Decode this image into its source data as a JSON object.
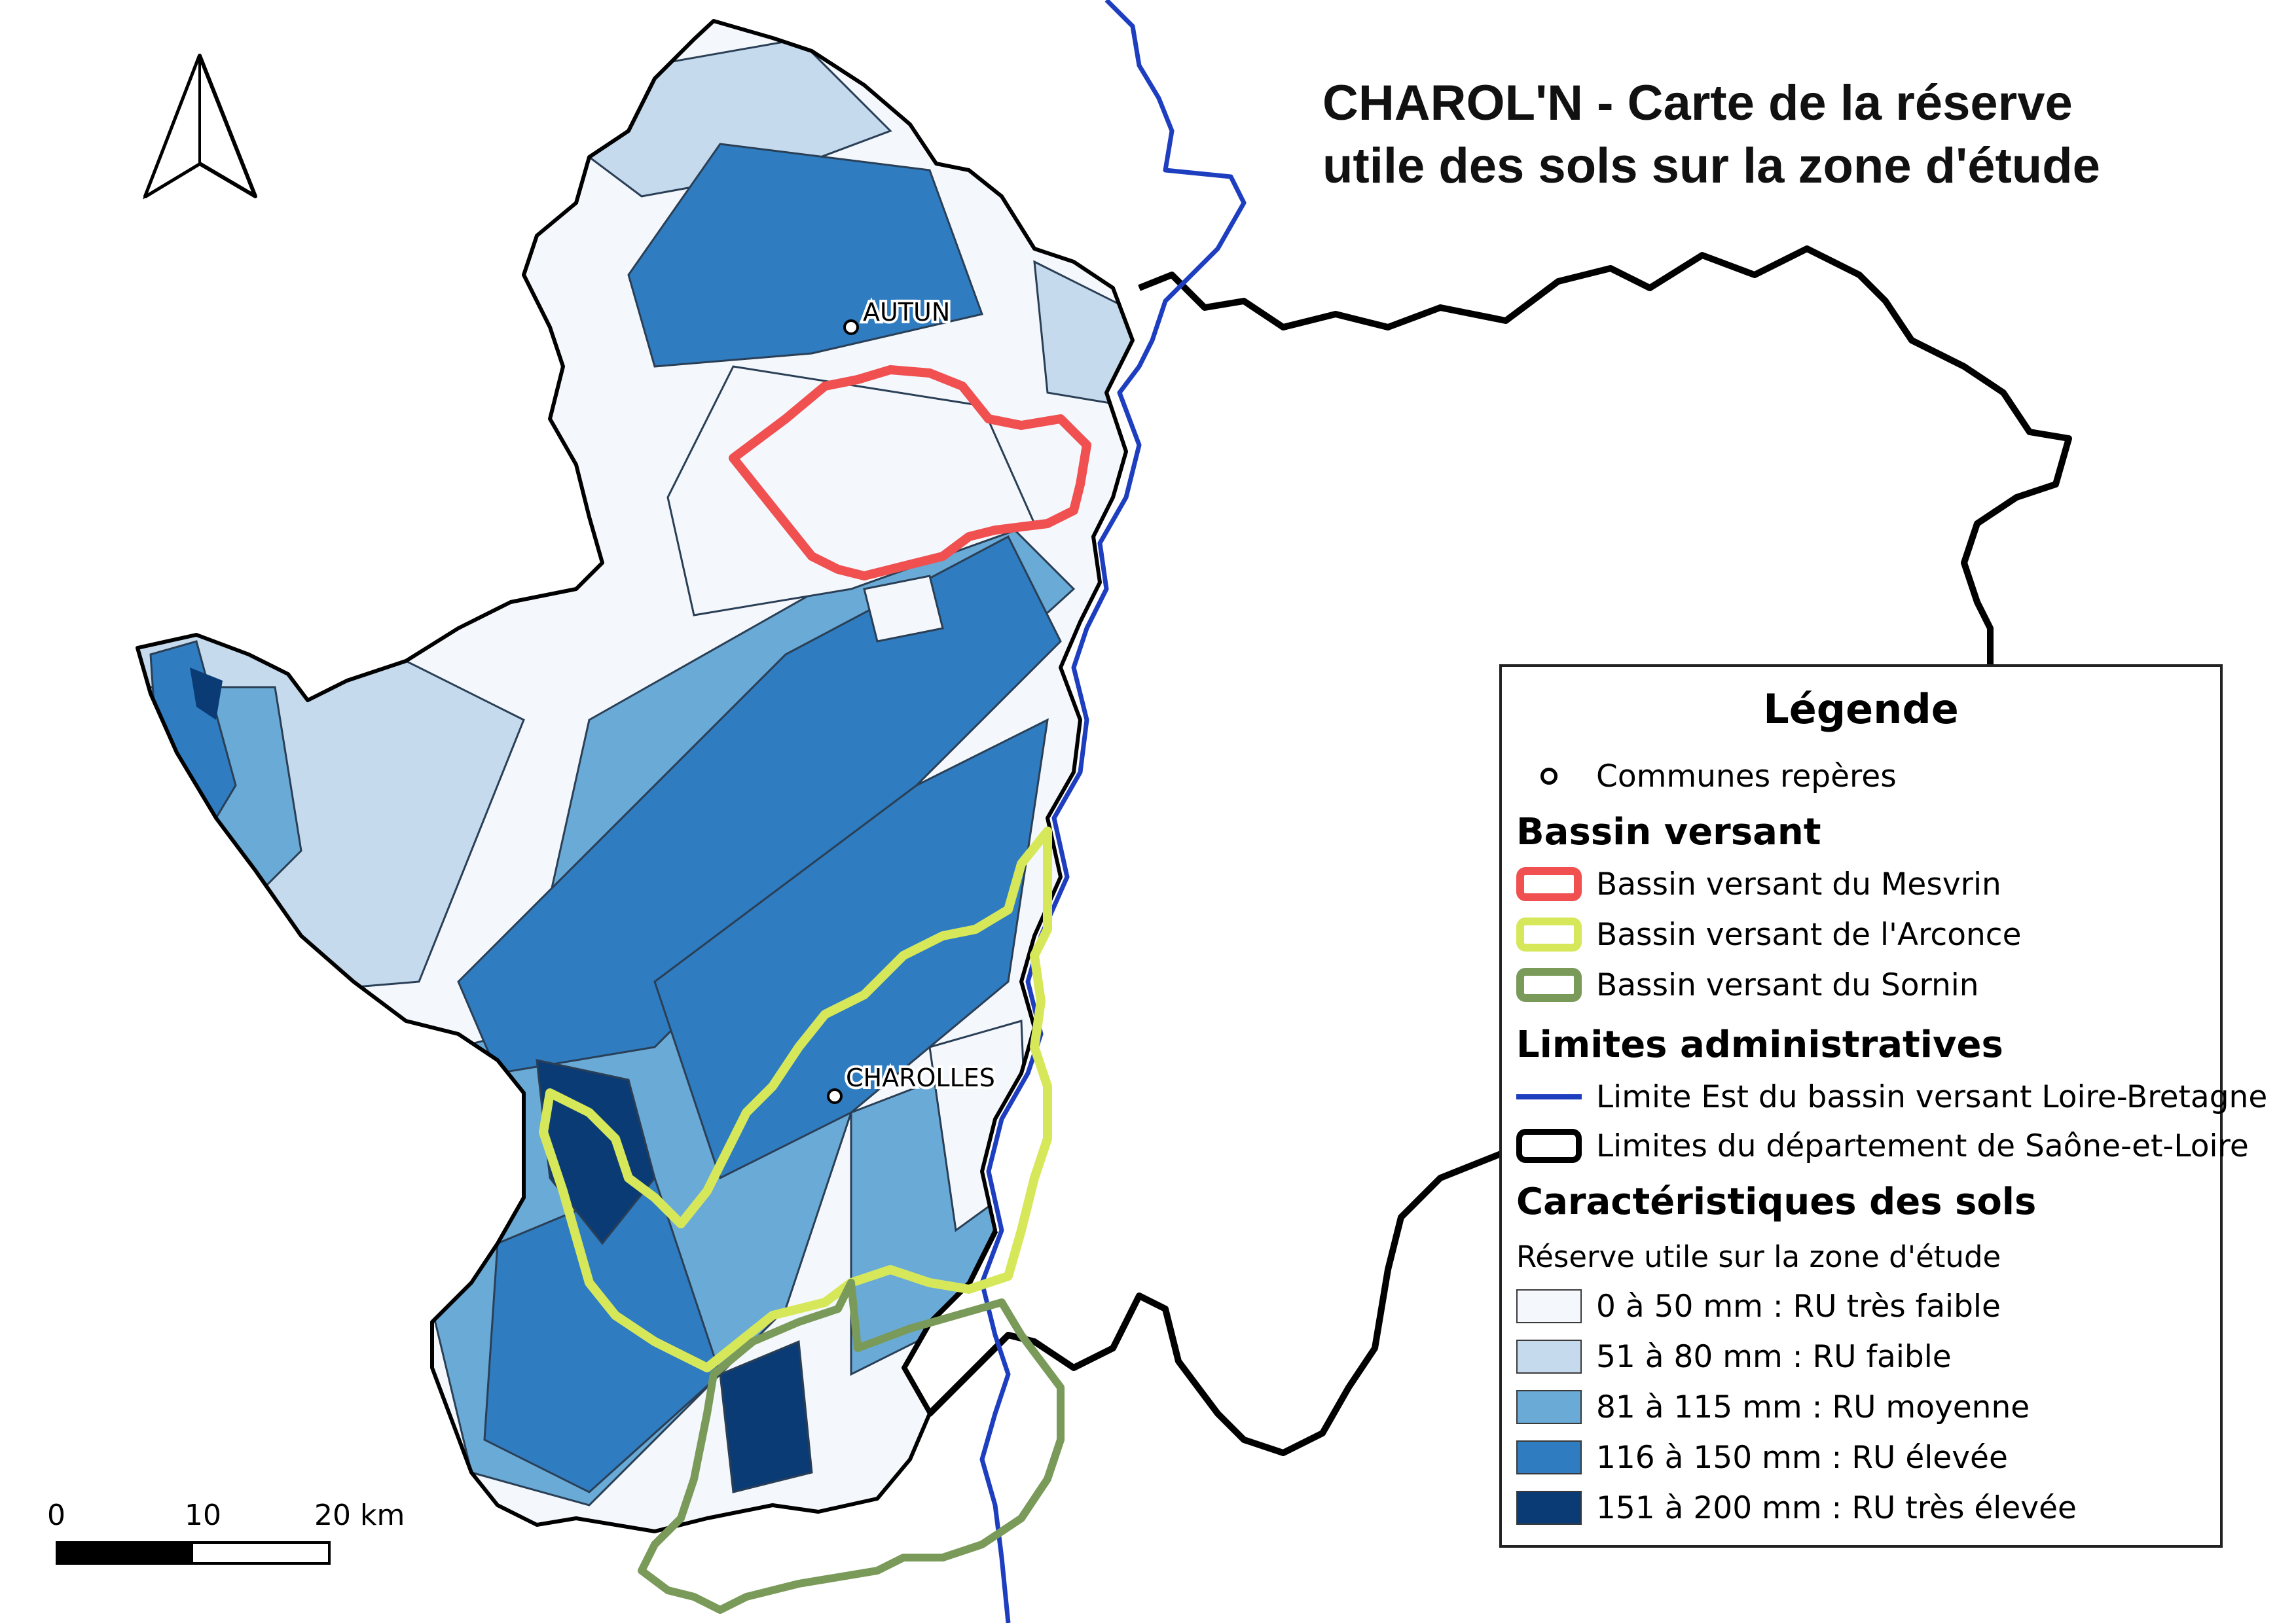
{
  "title": {
    "line1": "CHAROL'N - Carte de la réserve",
    "line2": "utile des sols sur la zone d'étude"
  },
  "colors": {
    "ru_tres_faible": "#f4f8fd",
    "ru_faible": "#c5daed",
    "ru_moyenne": "#6aaad7",
    "ru_elevee": "#2f7cc0",
    "ru_tres_elevee": "#0b3b74",
    "mesvrin": "#f05050",
    "arconce": "#d6e85a",
    "sornin": "#7a9a5a",
    "loire_bretagne": "#1e3ec0",
    "departement": "#000000"
  },
  "cities": [
    {
      "name": "AUTUN"
    },
    {
      "name": "CHAROLLES"
    }
  ],
  "legend": {
    "title": "Légende",
    "communes": "Communes repères",
    "bassin_heading": "Bassin versant",
    "bassins": [
      {
        "label": "Bassin versant du Mesvrin",
        "color": "#f05050"
      },
      {
        "label": "Bassin versant de l'Arconce",
        "color": "#d6e85a"
      },
      {
        "label": "Bassin versant du Sornin",
        "color": "#7a9a5a"
      }
    ],
    "admin_heading": "Limites administratives",
    "admin": [
      {
        "label": "Limite Est du bassin versant Loire-Bretagne",
        "color": "#1e3ec0"
      },
      {
        "label": "Limites du département de Saône-et-Loire",
        "color": "#000000"
      }
    ],
    "sols_heading": "Caractéristiques des sols",
    "sols_sub": "Réserve utile sur la zone d'étude",
    "sols": [
      {
        "label": "0 à 50 mm : RU très faible",
        "color": "#f4f8fd"
      },
      {
        "label": "51 à 80 mm : RU faible",
        "color": "#c5daed"
      },
      {
        "label": "81 à 115 mm : RU moyenne",
        "color": "#6aaad7"
      },
      {
        "label": "116 à 150 mm : RU élevée",
        "color": "#2f7cc0"
      },
      {
        "label": "151 à 200 mm : RU très élevée",
        "color": "#0b3b74"
      }
    ]
  },
  "scale": {
    "labels": [
      "0",
      "10",
      "20 km"
    ]
  },
  "north_arrow": {
    "icon": "north-arrow-icon"
  }
}
